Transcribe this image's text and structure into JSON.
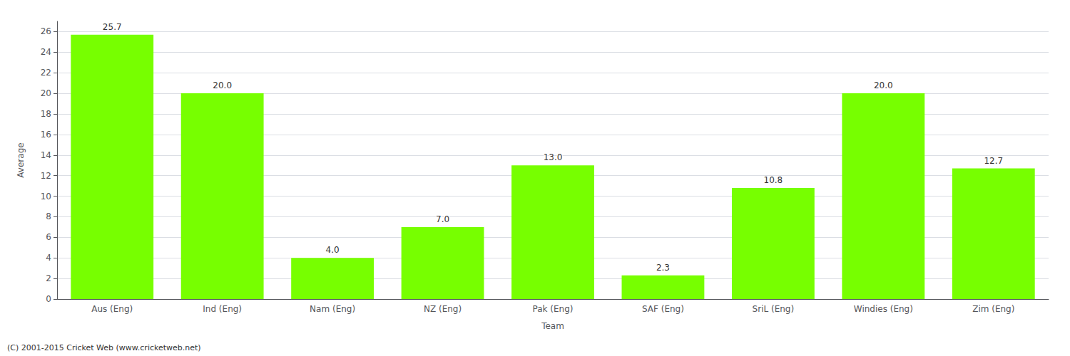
{
  "chart_data": {
    "type": "bar",
    "categories": [
      "Aus (Eng)",
      "Ind (Eng)",
      "Nam (Eng)",
      "NZ (Eng)",
      "Pak (Eng)",
      "SAF (Eng)",
      "SriL (Eng)",
      "Windies (Eng)",
      "Zim (Eng)"
    ],
    "values": [
      25.7,
      20.0,
      4.0,
      7.0,
      13.0,
      2.3,
      10.8,
      20.0,
      12.7
    ],
    "value_labels": [
      "25.7",
      "20.0",
      "4.0",
      "7.0",
      "13.0",
      "2.3",
      "10.8",
      "20.0",
      "12.7"
    ],
    "data_labels": true,
    "color": "#77ff00",
    "xlabel": "Team",
    "ylabel": "Average",
    "ylim": [
      0,
      27
    ],
    "yticks": [
      0,
      2,
      4,
      6,
      8,
      10,
      12,
      14,
      16,
      18,
      20,
      22,
      24,
      26
    ],
    "grid": true,
    "annotations": [
      "(C) 2001-2015 Cricket Web (www.cricketweb.net)"
    ]
  }
}
